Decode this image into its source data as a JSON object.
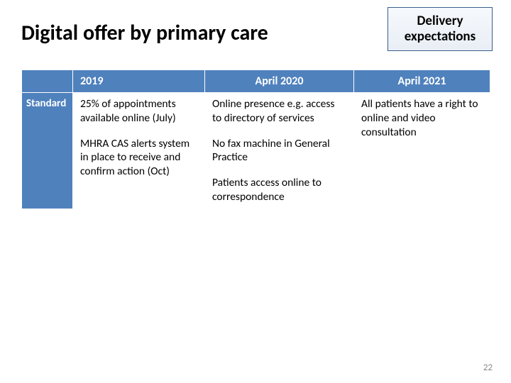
{
  "title": "Digital offer by primary care",
  "callout": "Delivery expectations",
  "table": {
    "headers": [
      "",
      "2019",
      "April 2020",
      "April 2021"
    ],
    "row_label": "Standard",
    "col_2019_p1": "25% of appointments available online (July)",
    "col_2019_p2": "MHRA CAS alerts system in place to receive and confirm action (Oct)",
    "col_2020_p1": "Online presence e.g. access to directory of services",
    "col_2020_p2": "No fax machine in General Practice",
    "col_2020_p3": "Patients access online to correspondence",
    "col_2021_p1": "All patients have a right to online and video consultation"
  },
  "page_number": "22",
  "colors": {
    "header_bg": "#4f81bd",
    "header_text": "#ffffff",
    "callout_border": "#385d8a",
    "pagenum": "#898989"
  }
}
